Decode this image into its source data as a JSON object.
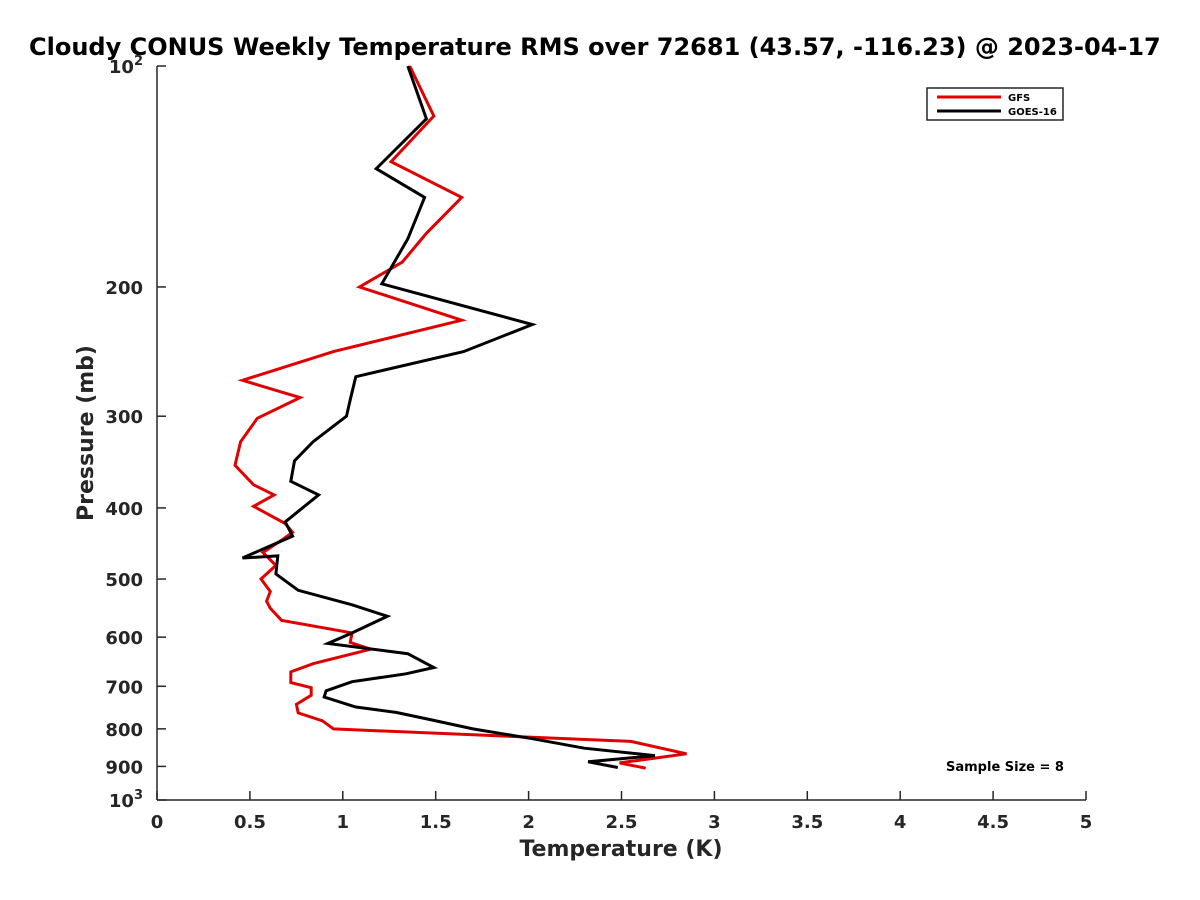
{
  "chart_data": {
    "type": "line",
    "title": "Cloudy CONUS Weekly Temperature RMS over 72681 (43.57, -116.23) @ 2023-04-17",
    "xlabel": "Temperature (K)",
    "ylabel": "Pressure (mb)",
    "xlim": [
      0,
      5
    ],
    "ylim": [
      100,
      1000
    ],
    "y_scale": "log",
    "y_reversed": true,
    "x_ticks": [
      {
        "value": 0,
        "label": "0"
      },
      {
        "value": 0.5,
        "label": "0.5"
      },
      {
        "value": 1,
        "label": "1"
      },
      {
        "value": 1.5,
        "label": "1.5"
      },
      {
        "value": 2,
        "label": "2"
      },
      {
        "value": 2.5,
        "label": "2.5"
      },
      {
        "value": 3,
        "label": "3"
      },
      {
        "value": 3.5,
        "label": "3.5"
      },
      {
        "value": 4,
        "label": "4"
      },
      {
        "value": 4.5,
        "label": "4.5"
      },
      {
        "value": 5,
        "label": "5"
      }
    ],
    "y_ticks": [
      {
        "value": 100,
        "base": "10",
        "exp": "2"
      },
      {
        "value": 200,
        "label": "200"
      },
      {
        "value": 300,
        "label": "300"
      },
      {
        "value": 400,
        "label": "400"
      },
      {
        "value": 500,
        "label": "500"
      },
      {
        "value": 600,
        "label": "600"
      },
      {
        "value": 700,
        "label": "700"
      },
      {
        "value": 800,
        "label": "800"
      },
      {
        "value": 900,
        "label": "900"
      },
      {
        "value": 1000,
        "base": "10",
        "exp": "3"
      }
    ],
    "grid": false,
    "legend": {
      "placement": "top-right"
    },
    "annotation": "Sample Size = 8",
    "series": [
      {
        "name": "GFS",
        "color": "#e00000",
        "points": [
          [
            1.36,
            100
          ],
          [
            1.49,
            117
          ],
          [
            1.26,
            135
          ],
          [
            1.64,
            151
          ],
          [
            1.45,
            169
          ],
          [
            1.32,
            185
          ],
          [
            1.09,
            200
          ],
          [
            1.64,
            222
          ],
          [
            0.95,
            245
          ],
          [
            0.46,
            268
          ],
          [
            0.77,
            283
          ],
          [
            0.54,
            302
          ],
          [
            0.45,
            325
          ],
          [
            0.42,
            350
          ],
          [
            0.52,
            372
          ],
          [
            0.63,
            384
          ],
          [
            0.52,
            398
          ],
          [
            0.69,
            420
          ],
          [
            0.73,
            432
          ],
          [
            0.68,
            441
          ],
          [
            0.57,
            460
          ],
          [
            0.64,
            479
          ],
          [
            0.56,
            500
          ],
          [
            0.61,
            520
          ],
          [
            0.59,
            536
          ],
          [
            0.61,
            548
          ],
          [
            0.67,
            569
          ],
          [
            1.05,
            592
          ],
          [
            1.04,
            610
          ],
          [
            1.15,
            623
          ],
          [
            0.84,
            652
          ],
          [
            0.72,
            669
          ],
          [
            0.72,
            692
          ],
          [
            0.83,
            703
          ],
          [
            0.83,
            720
          ],
          [
            0.75,
            741
          ],
          [
            0.76,
            761
          ],
          [
            0.89,
            780
          ],
          [
            0.95,
            800
          ],
          [
            2.55,
            832
          ],
          [
            2.85,
            865
          ],
          [
            2.49,
            890
          ],
          [
            2.63,
            905
          ]
        ]
      },
      {
        "name": "GOES-16",
        "color": "#000000",
        "points": [
          [
            1.35,
            100
          ],
          [
            1.45,
            118
          ],
          [
            1.18,
            138
          ],
          [
            1.44,
            151
          ],
          [
            1.35,
            172
          ],
          [
            1.21,
            198
          ],
          [
            2.02,
            225
          ],
          [
            1.65,
            245
          ],
          [
            1.07,
            265
          ],
          [
            1.04,
            285
          ],
          [
            1.02,
            300
          ],
          [
            0.84,
            325
          ],
          [
            0.74,
            345
          ],
          [
            0.72,
            368
          ],
          [
            0.87,
            384
          ],
          [
            0.69,
            418
          ],
          [
            0.73,
            437
          ],
          [
            0.46,
            468
          ],
          [
            0.65,
            465
          ],
          [
            0.64,
            492
          ],
          [
            0.76,
            518
          ],
          [
            1.05,
            542
          ],
          [
            1.24,
            562
          ],
          [
            1.05,
            592
          ],
          [
            0.92,
            612
          ],
          [
            1.35,
            632
          ],
          [
            1.49,
            660
          ],
          [
            1.34,
            673
          ],
          [
            1.05,
            690
          ],
          [
            0.91,
            710
          ],
          [
            0.9,
            724
          ],
          [
            1.07,
            747
          ],
          [
            1.29,
            760
          ],
          [
            1.48,
            778
          ],
          [
            1.7,
            800
          ],
          [
            2.02,
            825
          ],
          [
            2.3,
            850
          ],
          [
            2.68,
            870
          ],
          [
            2.32,
            887
          ],
          [
            2.48,
            903
          ]
        ]
      }
    ]
  }
}
